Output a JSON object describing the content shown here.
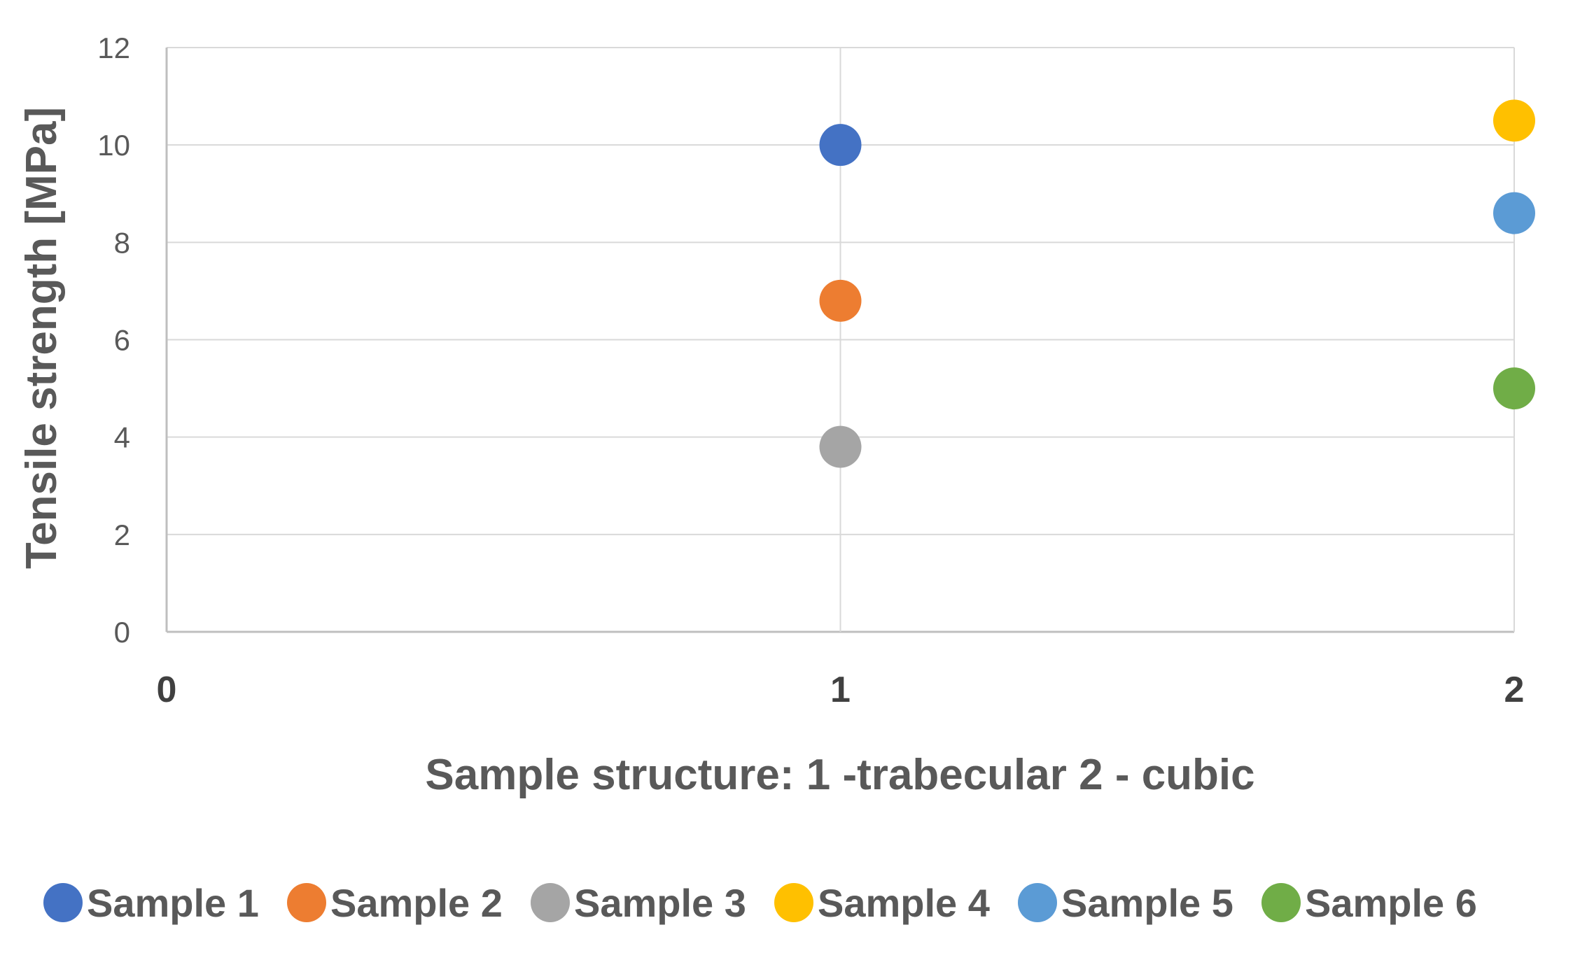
{
  "chart_data": {
    "type": "scatter",
    "xlabel": "Sample structure: 1 -trabecular  2 - cubic",
    "ylabel": "Tensile strength  [MPa]",
    "xlim": [
      0,
      2
    ],
    "ylim": [
      0,
      12
    ],
    "x_ticks": [
      "0",
      "1",
      "2"
    ],
    "y_ticks": [
      "0",
      "2",
      "4",
      "6",
      "8",
      "10",
      "12"
    ],
    "grid": true,
    "legend_position": "bottom",
    "series": [
      {
        "name": "Sample 1",
        "color": "#4472C4",
        "x": [
          1
        ],
        "y": [
          10.0
        ]
      },
      {
        "name": "Sample 2",
        "color": "#ED7D31",
        "x": [
          1
        ],
        "y": [
          6.8
        ]
      },
      {
        "name": "Sample 3",
        "color": "#A5A5A5",
        "x": [
          1
        ],
        "y": [
          3.8
        ]
      },
      {
        "name": "Sample 4",
        "color": "#FFC000",
        "x": [
          2
        ],
        "y": [
          10.5
        ]
      },
      {
        "name": "Sample 5",
        "color": "#5B9BD5",
        "x": [
          2
        ],
        "y": [
          8.6
        ]
      },
      {
        "name": "Sample 6",
        "color": "#70AD47",
        "x": [
          2
        ],
        "y": [
          5.0
        ]
      }
    ]
  }
}
